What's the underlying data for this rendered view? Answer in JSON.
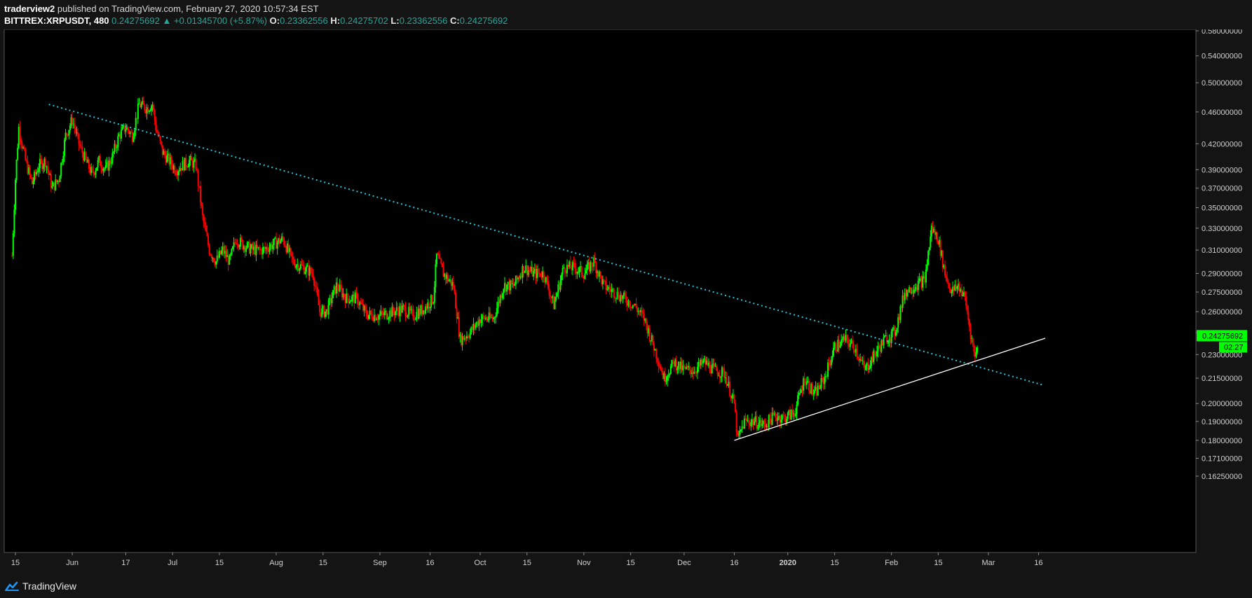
{
  "header": {
    "author": "traderview2",
    "published_text": "published on TradingView.com, February 27, 2020 10:57:34 EST",
    "symbol": "BITTREX:XRPUSDT, 480",
    "last": "0.24275692",
    "change": "+0.01345700 (+5.87%)",
    "open_label": "O:",
    "open": "0.23362556",
    "high_label": "H:",
    "high": "0.24275702",
    "low_label": "L:",
    "low": "0.23362556",
    "close_label": "C:",
    "close": "0.24275692"
  },
  "footer": {
    "brand": "TradingView"
  },
  "colors": {
    "background": "#000000",
    "up": "#00ff00",
    "down": "#ff0000",
    "trendline_down": "#26c6da",
    "trendline_up": "#ffffff",
    "axis_text": "#d0d0d0",
    "price_tag": "#00ff00"
  },
  "chart_data": {
    "type": "candlestick",
    "scale": "log",
    "y_ticks": [
      "0.58000000",
      "0.54000000",
      "0.50000000",
      "0.46000000",
      "0.42000000",
      "0.39000000",
      "0.37000000",
      "0.35000000",
      "0.33000000",
      "0.31000000",
      "0.29000000",
      "0.27500000",
      "0.26000000",
      "0.24500000",
      "0.23000000",
      "0.21500000",
      "0.20000000",
      "0.19000000",
      "0.18000000",
      "0.17100000",
      "0.16250000"
    ],
    "y_tick_values": [
      0.58,
      0.54,
      0.5,
      0.46,
      0.42,
      0.39,
      0.37,
      0.35,
      0.33,
      0.31,
      0.29,
      0.275,
      0.26,
      0.245,
      0.23,
      0.215,
      0.2,
      0.19,
      0.18,
      0.171,
      0.1625
    ],
    "x_ticks": [
      "15",
      "Jun",
      "17",
      "Jul",
      "15",
      "Aug",
      "15",
      "Sep",
      "16",
      "Oct",
      "15",
      "Nov",
      "15",
      "Dec",
      "16",
      "2020",
      "15",
      "Feb",
      "15",
      "Mar",
      "16"
    ],
    "x_tick_dates": [
      "2019-05-15",
      "2019-06-01",
      "2019-06-17",
      "2019-07-01",
      "2019-07-15",
      "2019-08-01",
      "2019-08-15",
      "2019-09-01",
      "2019-09-16",
      "2019-10-01",
      "2019-10-15",
      "2019-11-01",
      "2019-11-15",
      "2019-12-01",
      "2019-12-16",
      "2020-01-01",
      "2020-01-15",
      "2020-02-01",
      "2020-02-15",
      "2020-03-01",
      "2020-03-16"
    ],
    "ylim": [
      0.158,
      0.585
    ],
    "price_tag": "0.24275692",
    "countdown_tag": "02:27",
    "closes": [
      {
        "d": "2019-05-14",
        "c": 0.305
      },
      {
        "d": "2019-05-15",
        "c": 0.38
      },
      {
        "d": "2019-05-16",
        "c": 0.44
      },
      {
        "d": "2019-05-18",
        "c": 0.4
      },
      {
        "d": "2019-05-20",
        "c": 0.375
      },
      {
        "d": "2019-05-22",
        "c": 0.395
      },
      {
        "d": "2019-05-24",
        "c": 0.4
      },
      {
        "d": "2019-05-26",
        "c": 0.37
      },
      {
        "d": "2019-05-28",
        "c": 0.38
      },
      {
        "d": "2019-05-30",
        "c": 0.43
      },
      {
        "d": "2019-06-01",
        "c": 0.45
      },
      {
        "d": "2019-06-03",
        "c": 0.42
      },
      {
        "d": "2019-06-05",
        "c": 0.4
      },
      {
        "d": "2019-06-07",
        "c": 0.385
      },
      {
        "d": "2019-06-09",
        "c": 0.4
      },
      {
        "d": "2019-06-11",
        "c": 0.39
      },
      {
        "d": "2019-06-13",
        "c": 0.405
      },
      {
        "d": "2019-06-15",
        "c": 0.43
      },
      {
        "d": "2019-06-17",
        "c": 0.44
      },
      {
        "d": "2019-06-19",
        "c": 0.43
      },
      {
        "d": "2019-06-21",
        "c": 0.47
      },
      {
        "d": "2019-06-23",
        "c": 0.465
      },
      {
        "d": "2019-06-25",
        "c": 0.47
      },
      {
        "d": "2019-06-26",
        "c": 0.44
      },
      {
        "d": "2019-06-28",
        "c": 0.41
      },
      {
        "d": "2019-06-30",
        "c": 0.4
      },
      {
        "d": "2019-07-02",
        "c": 0.39
      },
      {
        "d": "2019-07-04",
        "c": 0.395
      },
      {
        "d": "2019-07-06",
        "c": 0.4
      },
      {
        "d": "2019-07-08",
        "c": 0.395
      },
      {
        "d": "2019-07-10",
        "c": 0.34
      },
      {
        "d": "2019-07-12",
        "c": 0.31
      },
      {
        "d": "2019-07-14",
        "c": 0.3
      },
      {
        "d": "2019-07-16",
        "c": 0.31
      },
      {
        "d": "2019-07-18",
        "c": 0.3
      },
      {
        "d": "2019-07-20",
        "c": 0.32
      },
      {
        "d": "2019-07-22",
        "c": 0.315
      },
      {
        "d": "2019-07-25",
        "c": 0.31
      },
      {
        "d": "2019-07-28",
        "c": 0.31
      },
      {
        "d": "2019-07-31",
        "c": 0.315
      },
      {
        "d": "2019-08-03",
        "c": 0.32
      },
      {
        "d": "2019-08-06",
        "c": 0.3
      },
      {
        "d": "2019-08-09",
        "c": 0.295
      },
      {
        "d": "2019-08-12",
        "c": 0.29
      },
      {
        "d": "2019-08-14",
        "c": 0.26
      },
      {
        "d": "2019-08-16",
        "c": 0.26
      },
      {
        "d": "2019-08-19",
        "c": 0.28
      },
      {
        "d": "2019-08-22",
        "c": 0.27
      },
      {
        "d": "2019-08-25",
        "c": 0.27
      },
      {
        "d": "2019-08-28",
        "c": 0.258
      },
      {
        "d": "2019-09-01",
        "c": 0.257
      },
      {
        "d": "2019-09-05",
        "c": 0.26
      },
      {
        "d": "2019-09-08",
        "c": 0.262
      },
      {
        "d": "2019-09-11",
        "c": 0.257
      },
      {
        "d": "2019-09-14",
        "c": 0.262
      },
      {
        "d": "2019-09-17",
        "c": 0.27
      },
      {
        "d": "2019-09-18",
        "c": 0.305
      },
      {
        "d": "2019-09-20",
        "c": 0.29
      },
      {
        "d": "2019-09-23",
        "c": 0.28
      },
      {
        "d": "2019-09-25",
        "c": 0.24
      },
      {
        "d": "2019-09-28",
        "c": 0.245
      },
      {
        "d": "2019-10-01",
        "c": 0.255
      },
      {
        "d": "2019-10-05",
        "c": 0.255
      },
      {
        "d": "2019-10-08",
        "c": 0.28
      },
      {
        "d": "2019-10-11",
        "c": 0.28
      },
      {
        "d": "2019-10-14",
        "c": 0.295
      },
      {
        "d": "2019-10-17",
        "c": 0.29
      },
      {
        "d": "2019-10-20",
        "c": 0.29
      },
      {
        "d": "2019-10-23",
        "c": 0.265
      },
      {
        "d": "2019-10-26",
        "c": 0.295
      },
      {
        "d": "2019-10-29",
        "c": 0.295
      },
      {
        "d": "2019-11-01",
        "c": 0.29
      },
      {
        "d": "2019-11-04",
        "c": 0.3
      },
      {
        "d": "2019-11-07",
        "c": 0.28
      },
      {
        "d": "2019-11-10",
        "c": 0.275
      },
      {
        "d": "2019-11-13",
        "c": 0.27
      },
      {
        "d": "2019-11-16",
        "c": 0.265
      },
      {
        "d": "2019-11-19",
        "c": 0.255
      },
      {
        "d": "2019-11-22",
        "c": 0.235
      },
      {
        "d": "2019-11-25",
        "c": 0.215
      },
      {
        "d": "2019-11-28",
        "c": 0.225
      },
      {
        "d": "2019-12-01",
        "c": 0.22
      },
      {
        "d": "2019-12-04",
        "c": 0.22
      },
      {
        "d": "2019-12-07",
        "c": 0.225
      },
      {
        "d": "2019-12-10",
        "c": 0.22
      },
      {
        "d": "2019-12-13",
        "c": 0.218
      },
      {
        "d": "2019-12-16",
        "c": 0.2
      },
      {
        "d": "2019-12-17",
        "c": 0.18
      },
      {
        "d": "2019-12-19",
        "c": 0.19
      },
      {
        "d": "2019-12-22",
        "c": 0.19
      },
      {
        "d": "2019-12-25",
        "c": 0.188
      },
      {
        "d": "2019-12-28",
        "c": 0.193
      },
      {
        "d": "2019-12-31",
        "c": 0.192
      },
      {
        "d": "2020-01-03",
        "c": 0.195
      },
      {
        "d": "2020-01-06",
        "c": 0.215
      },
      {
        "d": "2020-01-09",
        "c": 0.205
      },
      {
        "d": "2020-01-12",
        "c": 0.215
      },
      {
        "d": "2020-01-15",
        "c": 0.235
      },
      {
        "d": "2020-01-18",
        "c": 0.24
      },
      {
        "d": "2020-01-21",
        "c": 0.235
      },
      {
        "d": "2020-01-24",
        "c": 0.22
      },
      {
        "d": "2020-01-27",
        "c": 0.23
      },
      {
        "d": "2020-01-30",
        "c": 0.24
      },
      {
        "d": "2020-02-02",
        "c": 0.245
      },
      {
        "d": "2020-02-05",
        "c": 0.275
      },
      {
        "d": "2020-02-08",
        "c": 0.28
      },
      {
        "d": "2020-02-11",
        "c": 0.285
      },
      {
        "d": "2020-02-13",
        "c": 0.33
      },
      {
        "d": "2020-02-15",
        "c": 0.32
      },
      {
        "d": "2020-02-17",
        "c": 0.29
      },
      {
        "d": "2020-02-19",
        "c": 0.275
      },
      {
        "d": "2020-02-21",
        "c": 0.28
      },
      {
        "d": "2020-02-23",
        "c": 0.27
      },
      {
        "d": "2020-02-25",
        "c": 0.24
      },
      {
        "d": "2020-02-26",
        "c": 0.228
      },
      {
        "d": "2020-02-27",
        "c": 0.2428
      }
    ],
    "trendlines": [
      {
        "name": "descending resistance",
        "style": "dotted",
        "color": "#26c6da",
        "from": {
          "d": "2019-05-25",
          "p": 0.47
        },
        "to": {
          "d": "2020-03-17",
          "p": 0.211
        }
      },
      {
        "name": "ascending support",
        "style": "solid",
        "color": "#ffffff",
        "from": {
          "d": "2019-12-16",
          "p": 0.18
        },
        "to": {
          "d": "2020-03-18",
          "p": 0.241
        }
      }
    ]
  }
}
